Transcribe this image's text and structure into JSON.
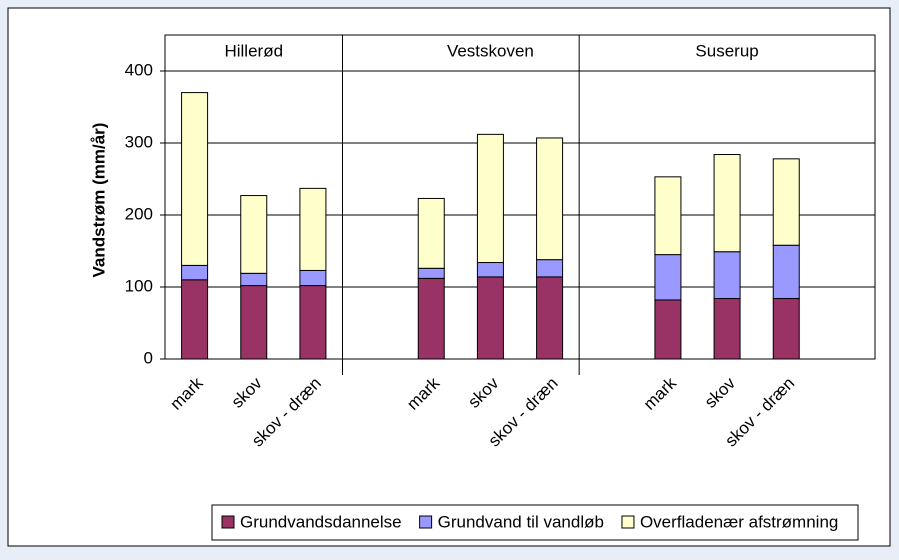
{
  "chart_data": {
    "type": "bar",
    "stacked": true,
    "y_label": "Vandstrøm (mm/år)",
    "groups": [
      "Hillerød",
      "Vestskoven",
      "Suserup"
    ],
    "categories": [
      "mark",
      "skov",
      "skov - dræn",
      null,
      "mark",
      "skov",
      "skov - dræn",
      null,
      "mark",
      "skov",
      "skov - dræn",
      null
    ],
    "series": [
      {
        "name": "Grundvandsdannelse",
        "color": "#993366",
        "values": [
          110,
          102,
          102,
          null,
          112,
          114,
          114,
          null,
          82,
          84,
          84,
          null
        ]
      },
      {
        "name": "Grundvand til vandløb",
        "color": "#9999ff",
        "values": [
          20,
          17,
          21,
          null,
          14,
          20,
          24,
          null,
          63,
          65,
          74,
          null
        ]
      },
      {
        "name": "Overfladenær afstrømning",
        "color": "#ffffcc",
        "values": [
          240,
          108,
          114,
          null,
          97,
          178,
          169,
          null,
          108,
          135,
          120,
          null
        ]
      }
    ],
    "ylim": [
      0,
      450
    ],
    "yticks": [
      0,
      100,
      200,
      300,
      400
    ],
    "grid": true,
    "legend": "bottom"
  }
}
